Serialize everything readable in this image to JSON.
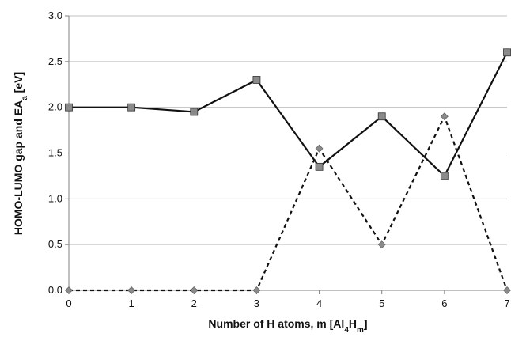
{
  "chart_data": {
    "type": "line",
    "x": [
      0,
      1,
      2,
      3,
      4,
      5,
      6,
      7
    ],
    "series": [
      {
        "values": [
          2.0,
          2.0,
          1.95,
          2.3,
          1.35,
          1.9,
          1.25,
          2.6
        ],
        "line_style": "solid",
        "marker": "square",
        "line_color": "#111111",
        "marker_color": "#8a8a8a"
      },
      {
        "values": [
          0.0,
          0.0,
          0.0,
          0.0,
          1.55,
          0.5,
          1.9,
          0.0
        ],
        "line_style": "dashed",
        "marker": "diamond",
        "line_color": "#111111",
        "marker_color": "#8a8a8a"
      }
    ],
    "xlim": [
      0,
      7
    ],
    "ylim": [
      0,
      3.0
    ],
    "x_ticks": [
      "0",
      "1",
      "2",
      "3",
      "4",
      "5",
      "6",
      "7"
    ],
    "y_ticks": [
      "0.0",
      "0.5",
      "1.0",
      "1.5",
      "2.0",
      "2.5",
      "3.0"
    ],
    "y_tick_values": [
      0,
      0.5,
      1.0,
      1.5,
      2.0,
      2.5,
      3.0
    ],
    "xlabel": {
      "prefix": "Number of H atoms, m [Al",
      "sub1": "4",
      "mid": "H",
      "sub2": "m",
      "suffix": "]"
    },
    "ylabel": {
      "prefix": "HOMO-LUMO gap and EA",
      "sub": "a",
      "suffix": " [eV]"
    },
    "grid": "horizontal",
    "legend": "none",
    "colors": {
      "gridline": "#c0c0c0",
      "axis": "#808080"
    }
  }
}
